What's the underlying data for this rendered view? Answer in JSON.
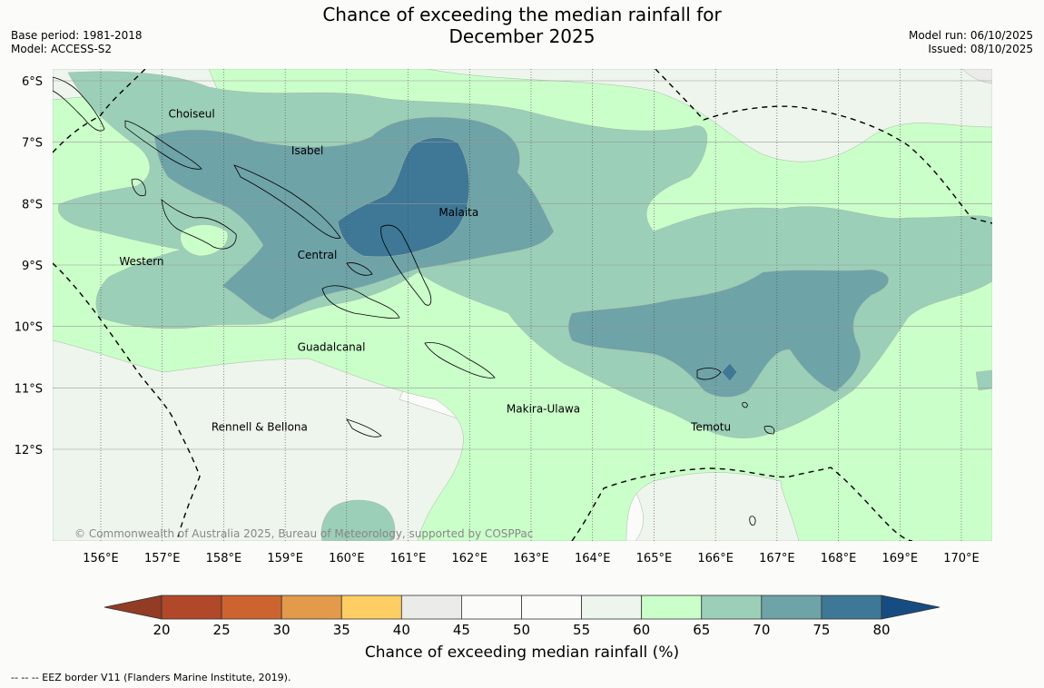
{
  "header": {
    "title_line1": "Chance of exceeding the median rainfall for",
    "title_line2": "December 2025",
    "base_period": "Base period: 1981-2018",
    "model": "Model: ACCESS-S2",
    "model_run": "Model run: 06/10/2025",
    "issued": "Issued: 08/10/2025"
  },
  "map": {
    "lat_labels": [
      "6°S",
      "7°S",
      "8°S",
      "9°S",
      "10°S",
      "11°S",
      "12°S"
    ],
    "lat_values": [
      -6,
      -7,
      -8,
      -9,
      -10,
      -11,
      -12
    ],
    "lon_labels": [
      "156°E",
      "157°E",
      "158°E",
      "159°E",
      "160°E",
      "161°E",
      "162°E",
      "163°E",
      "164°E",
      "165°E",
      "166°E",
      "167°E",
      "168°E",
      "169°E",
      "170°E"
    ],
    "lon_values": [
      156,
      157,
      158,
      159,
      160,
      161,
      162,
      163,
      164,
      165,
      166,
      167,
      168,
      169,
      170
    ],
    "extent": {
      "lon_min": 155.2,
      "lon_max": 170.4,
      "lat_min": -13.5,
      "lat_max": -5.8
    },
    "provinces": [
      {
        "name": "Choiseul",
        "lon": 157.1,
        "lat": -6.6
      },
      {
        "name": "Isabel",
        "lon": 159.1,
        "lat": -7.2
      },
      {
        "name": "Malaita",
        "lon": 161.5,
        "lat": -8.2
      },
      {
        "name": "Western",
        "lon": 156.3,
        "lat": -9.0
      },
      {
        "name": "Central",
        "lon": 159.2,
        "lat": -8.9
      },
      {
        "name": "Guadalcanal",
        "lon": 159.2,
        "lat": -10.4
      },
      {
        "name": "Makira-Ulawa",
        "lon": 162.6,
        "lat": -11.4
      },
      {
        "name": "Rennell & Bellona",
        "lon": 157.8,
        "lat": -11.7
      },
      {
        "name": "Temotu",
        "lon": 165.6,
        "lat": -11.7
      }
    ],
    "copyright": "© Commonwealth of Australia 2025, Bureau of Meteorology, supported by COSPPac"
  },
  "colorbar": {
    "ticks": [
      "20",
      "25",
      "30",
      "35",
      "40",
      "45",
      "50",
      "55",
      "60",
      "65",
      "70",
      "75",
      "80"
    ],
    "colors": [
      "#b1482a",
      "#cd6430",
      "#e39a4b",
      "#fecd63",
      "#ebebe7",
      "#fbfcfa",
      "#fbfcfa",
      "#eef5ec",
      "#cbffca",
      "#9ccfb8",
      "#6ea3a7",
      "#3e7896"
    ],
    "under_color": "#923b25",
    "over_color": "#174c82",
    "label": "Chance of exceeding median rainfall (%)"
  },
  "legend": {
    "eez": "--  --  -- EEZ border V11 (Flanders Marine Institute, 2019)."
  }
}
